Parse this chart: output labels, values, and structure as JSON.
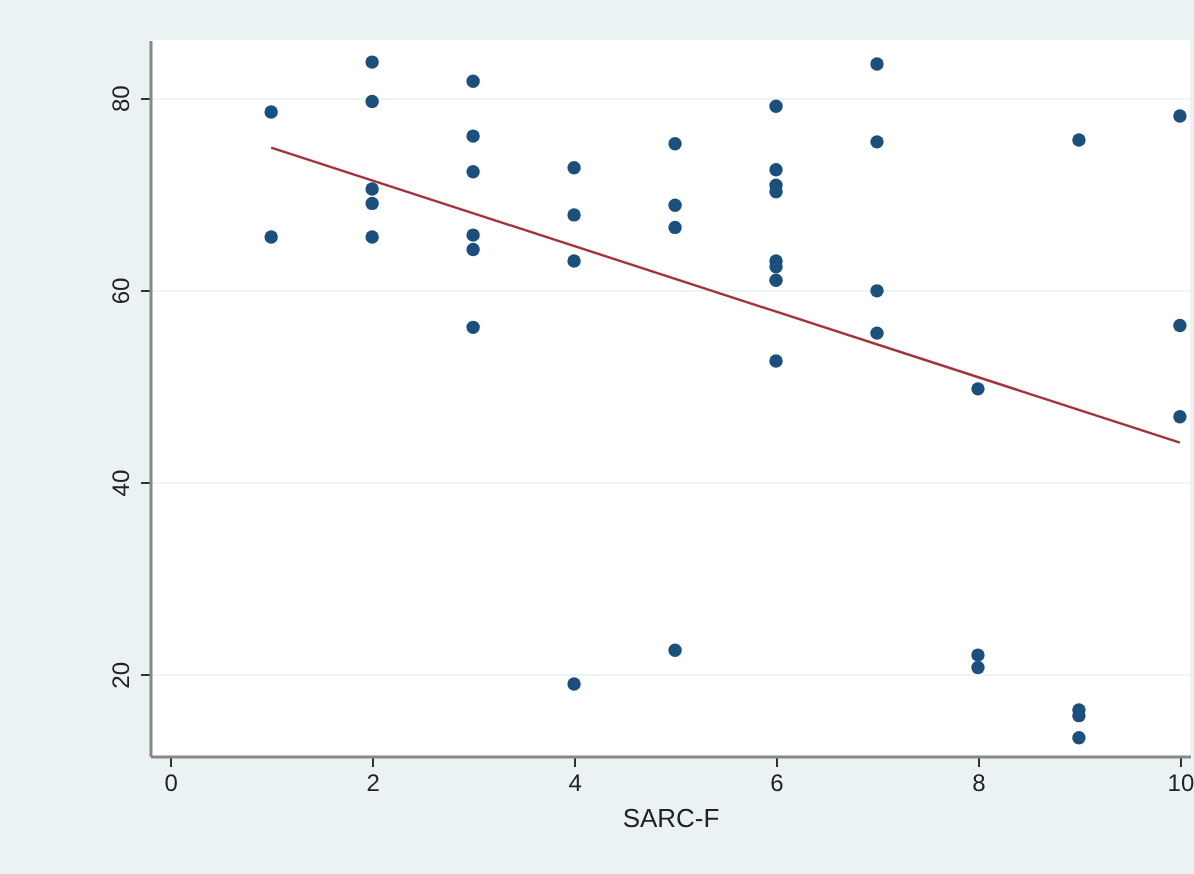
{
  "chart_data": {
    "type": "scatter",
    "xlabel": "SARC-F",
    "xlim": [
      -0.2,
      10.1
    ],
    "xticks": [
      0,
      2,
      4,
      6,
      8,
      10
    ],
    "ylim": [
      11.5,
      86
    ],
    "yticks": [
      20,
      40,
      60,
      80
    ],
    "grid": "y",
    "series": [
      {
        "marker": "circle",
        "color": "#1c4f7c",
        "x": [
          1,
          1,
          2,
          2,
          2,
          2,
          2,
          3,
          3,
          3,
          3,
          3,
          3,
          4,
          4,
          4,
          4,
          5,
          5,
          5,
          5,
          6,
          6,
          6,
          6,
          6,
          6,
          6,
          6,
          7,
          7,
          7,
          7,
          8,
          8,
          8,
          9,
          9,
          9,
          9,
          10,
          10,
          10
        ],
        "values": [
          78.5,
          65.5,
          83.7,
          79.6,
          70.5,
          69,
          65.5,
          81.7,
          76,
          72.3,
          65.7,
          64.2,
          56.1,
          72.7,
          67.8,
          63,
          19,
          75.2,
          68.8,
          66.5,
          22.5,
          79.1,
          72.5,
          70.9,
          70.2,
          63,
          62.4,
          61,
          52.6,
          83.5,
          75.4,
          59.9,
          55.5,
          49.7,
          22,
          20.7,
          75.6,
          16.3,
          15.7,
          13.4,
          78.1,
          56.3,
          46.8
        ]
      },
      {
        "type": "line",
        "color": "#a3333a",
        "x": [
          1,
          10
        ],
        "values": [
          74.8,
          44.1
        ]
      }
    ]
  }
}
